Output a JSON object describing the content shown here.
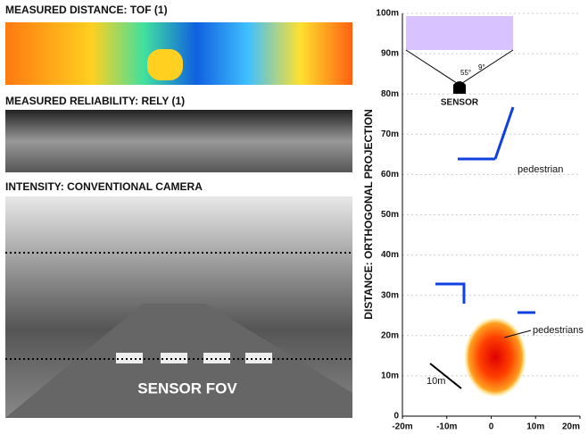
{
  "panels": [
    {
      "title": "MEASURED DISTANCE: TOF (1)"
    },
    {
      "title": "MEASURED RELIABILITY: RELY (1)"
    },
    {
      "title": "INTENSITY: CONVENTIONAL CAMERA",
      "annotation": "SENSOR FOV"
    }
  ],
  "plot": {
    "ylabel": "DISTANCE: ORTHOGONAL PROJECTION",
    "xlim": [
      -20,
      20
    ],
    "ylim": [
      0,
      100
    ],
    "xticks": [
      {
        "value": -20,
        "label": "-20m"
      },
      {
        "value": -10,
        "label": "-10m"
      },
      {
        "value": 0,
        "label": "0"
      },
      {
        "value": 10,
        "label": "10m"
      },
      {
        "value": 20,
        "label": "20m"
      }
    ],
    "yticks": [
      {
        "value": 0,
        "label": "0"
      },
      {
        "value": 10,
        "label": "10m"
      },
      {
        "value": 20,
        "label": "20m"
      },
      {
        "value": 30,
        "label": "30m"
      },
      {
        "value": 40,
        "label": "40m"
      },
      {
        "value": 50,
        "label": "50m"
      },
      {
        "value": 60,
        "label": "60m"
      },
      {
        "value": 70,
        "label": "70m"
      },
      {
        "value": 80,
        "label": "80m"
      },
      {
        "value": 90,
        "label": "90m"
      },
      {
        "value": 100,
        "label": "100m"
      }
    ],
    "annotations": {
      "sensor": "SENSOR",
      "fov_angle": "55°",
      "small_angle": "9°",
      "pedestrian": "pedestrian",
      "pedestrians": "pedestrians",
      "scale": "10m"
    }
  }
}
